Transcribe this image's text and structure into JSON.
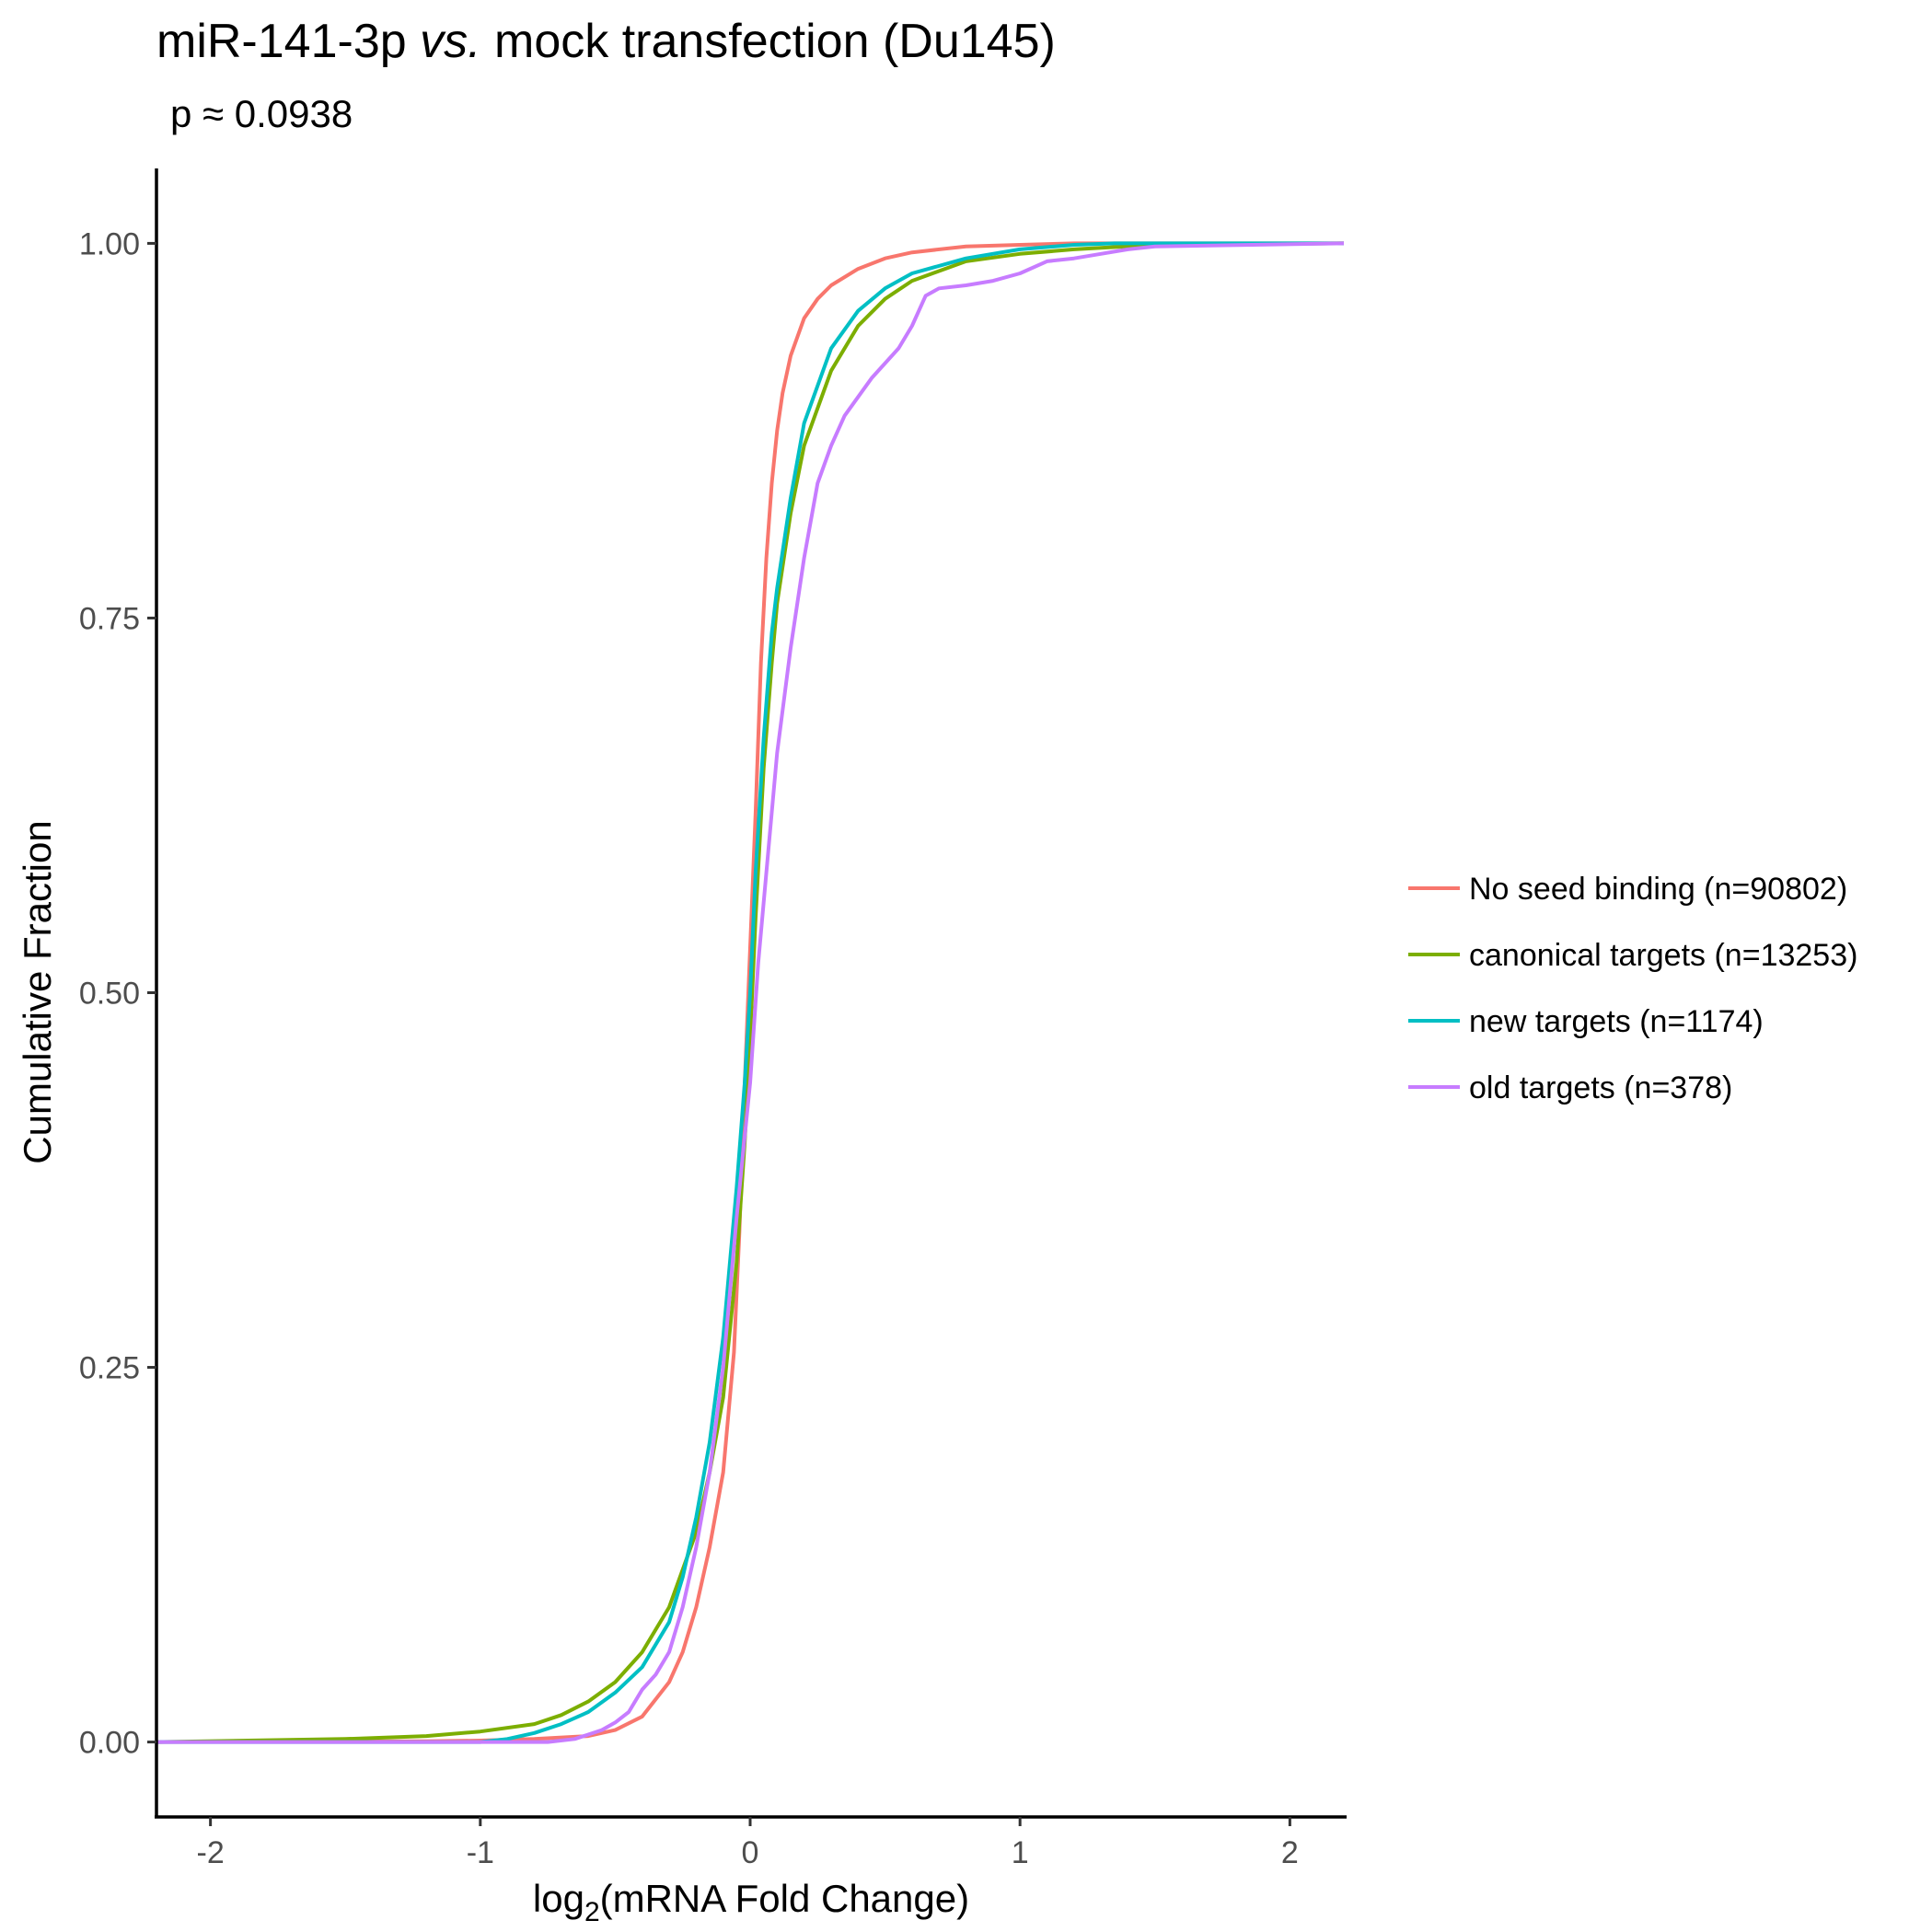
{
  "chart_data": {
    "type": "line",
    "title": {
      "prefix": "miR-141-3p ",
      "italic": "vs.",
      "suffix": " mock transfection (Du145)"
    },
    "subtitle": "p ≈ 0.0938",
    "xlabel": {
      "prefix": "log",
      "subscript": "2",
      "suffix": "(mRNA Fold Change)"
    },
    "ylabel": "Cumulative Fraction",
    "xlim": [
      -2.2,
      2.2
    ],
    "ylim": [
      -0.05,
      1.05
    ],
    "xticks": [
      {
        "value": -2,
        "label": "-2"
      },
      {
        "value": -1,
        "label": "-1"
      },
      {
        "value": 0,
        "label": "0"
      },
      {
        "value": 1,
        "label": "1"
      },
      {
        "value": 2,
        "label": "2"
      }
    ],
    "yticks": [
      {
        "value": 0,
        "label": "0.00"
      },
      {
        "value": 0.25,
        "label": "0.25"
      },
      {
        "value": 0.5,
        "label": "0.50"
      },
      {
        "value": 0.75,
        "label": "0.75"
      },
      {
        "value": 1,
        "label": "1.00"
      }
    ],
    "grid": false,
    "legend_position": "right",
    "series": [
      {
        "name": "No seed binding (n=90802)",
        "color": "#F8766D",
        "points": [
          [
            -2.2,
            0
          ],
          [
            -1.2,
            0.0005
          ],
          [
            -1.0,
            0.001
          ],
          [
            -0.8,
            0.002
          ],
          [
            -0.6,
            0.004
          ],
          [
            -0.5,
            0.008
          ],
          [
            -0.4,
            0.017
          ],
          [
            -0.3,
            0.04
          ],
          [
            -0.25,
            0.06
          ],
          [
            -0.2,
            0.09
          ],
          [
            -0.15,
            0.13
          ],
          [
            -0.1,
            0.18
          ],
          [
            -0.06,
            0.26
          ],
          [
            -0.04,
            0.34
          ],
          [
            -0.02,
            0.44
          ],
          [
            0,
            0.53
          ],
          [
            0.02,
            0.62
          ],
          [
            0.04,
            0.72
          ],
          [
            0.06,
            0.79
          ],
          [
            0.08,
            0.84
          ],
          [
            0.1,
            0.875
          ],
          [
            0.12,
            0.9
          ],
          [
            0.15,
            0.925
          ],
          [
            0.2,
            0.95
          ],
          [
            0.25,
            0.963
          ],
          [
            0.3,
            0.972
          ],
          [
            0.4,
            0.983
          ],
          [
            0.5,
            0.99
          ],
          [
            0.6,
            0.994
          ],
          [
            0.8,
            0.998
          ],
          [
            1.0,
            0.999
          ],
          [
            1.2,
            1.0
          ],
          [
            2.2,
            1.0
          ]
        ]
      },
      {
        "name": "canonical targets (n=13253)",
        "color": "#7CAE00",
        "points": [
          [
            -2.2,
            0
          ],
          [
            -1.5,
            0.002
          ],
          [
            -1.2,
            0.004
          ],
          [
            -1.0,
            0.007
          ],
          [
            -0.8,
            0.012
          ],
          [
            -0.7,
            0.018
          ],
          [
            -0.6,
            0.027
          ],
          [
            -0.5,
            0.04
          ],
          [
            -0.4,
            0.06
          ],
          [
            -0.3,
            0.09
          ],
          [
            -0.2,
            0.14
          ],
          [
            -0.15,
            0.18
          ],
          [
            -0.1,
            0.23
          ],
          [
            -0.05,
            0.32
          ],
          [
            -0.02,
            0.4
          ],
          [
            0,
            0.47
          ],
          [
            0.02,
            0.55
          ],
          [
            0.05,
            0.65
          ],
          [
            0.08,
            0.72
          ],
          [
            0.1,
            0.76
          ],
          [
            0.15,
            0.82
          ],
          [
            0.2,
            0.865
          ],
          [
            0.3,
            0.915
          ],
          [
            0.4,
            0.945
          ],
          [
            0.5,
            0.963
          ],
          [
            0.6,
            0.975
          ],
          [
            0.8,
            0.988
          ],
          [
            1.0,
            0.993
          ],
          [
            1.2,
            0.996
          ],
          [
            1.5,
            0.999
          ],
          [
            2.2,
            1.0
          ]
        ]
      },
      {
        "name": "new targets (n=1174)",
        "color": "#00BFC4",
        "points": [
          [
            -2.2,
            0
          ],
          [
            -1.0,
            0
          ],
          [
            -0.9,
            0.002
          ],
          [
            -0.8,
            0.006
          ],
          [
            -0.7,
            0.012
          ],
          [
            -0.6,
            0.02
          ],
          [
            -0.5,
            0.033
          ],
          [
            -0.4,
            0.05
          ],
          [
            -0.3,
            0.08
          ],
          [
            -0.25,
            0.11
          ],
          [
            -0.2,
            0.15
          ],
          [
            -0.15,
            0.2
          ],
          [
            -0.1,
            0.27
          ],
          [
            -0.05,
            0.37
          ],
          [
            -0.02,
            0.44
          ],
          [
            0,
            0.5
          ],
          [
            0.02,
            0.58
          ],
          [
            0.05,
            0.67
          ],
          [
            0.08,
            0.74
          ],
          [
            0.1,
            0.77
          ],
          [
            0.15,
            0.83
          ],
          [
            0.2,
            0.88
          ],
          [
            0.3,
            0.93
          ],
          [
            0.4,
            0.955
          ],
          [
            0.5,
            0.97
          ],
          [
            0.6,
            0.98
          ],
          [
            0.8,
            0.99
          ],
          [
            1.0,
            0.996
          ],
          [
            1.2,
            0.999
          ],
          [
            1.35,
            1.0
          ],
          [
            2.2,
            1.0
          ]
        ]
      },
      {
        "name": "old targets (n=378)",
        "color": "#C77CFF",
        "points": [
          [
            -2.2,
            0
          ],
          [
            -0.75,
            0
          ],
          [
            -0.65,
            0.002
          ],
          [
            -0.55,
            0.008
          ],
          [
            -0.5,
            0.013
          ],
          [
            -0.45,
            0.02
          ],
          [
            -0.4,
            0.035
          ],
          [
            -0.35,
            0.045
          ],
          [
            -0.3,
            0.06
          ],
          [
            -0.25,
            0.09
          ],
          [
            -0.2,
            0.13
          ],
          [
            -0.15,
            0.18
          ],
          [
            -0.1,
            0.25
          ],
          [
            -0.05,
            0.35
          ],
          [
            0,
            0.44
          ],
          [
            0.03,
            0.52
          ],
          [
            0.07,
            0.6
          ],
          [
            0.1,
            0.66
          ],
          [
            0.15,
            0.73
          ],
          [
            0.2,
            0.79
          ],
          [
            0.25,
            0.84
          ],
          [
            0.3,
            0.865
          ],
          [
            0.35,
            0.885
          ],
          [
            0.45,
            0.91
          ],
          [
            0.55,
            0.93
          ],
          [
            0.6,
            0.945
          ],
          [
            0.65,
            0.965
          ],
          [
            0.7,
            0.97
          ],
          [
            0.8,
            0.972
          ],
          [
            0.9,
            0.975
          ],
          [
            1.0,
            0.98
          ],
          [
            1.1,
            0.988
          ],
          [
            1.2,
            0.99
          ],
          [
            1.3,
            0.993
          ],
          [
            1.4,
            0.996
          ],
          [
            1.5,
            0.998
          ],
          [
            2.2,
            1.0
          ]
        ]
      }
    ]
  }
}
